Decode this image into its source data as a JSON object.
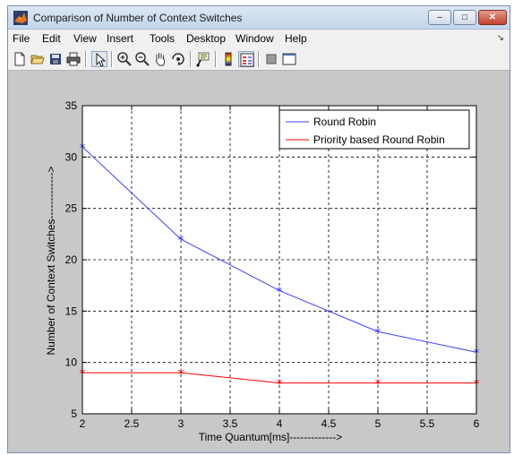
{
  "window": {
    "title": "Comparison of Number of Context Switches",
    "controls": {
      "minimize": "–",
      "maximize": "□",
      "close": "✕"
    }
  },
  "menubar": {
    "items": [
      "File",
      "Edit",
      "View",
      "Insert",
      "Tools",
      "Desktop",
      "Window",
      "Help"
    ],
    "dock_glyph": "↘"
  },
  "toolbar": {
    "icons": [
      "new-figure-icon",
      "open-file-icon",
      "save-icon",
      "print-icon",
      "edit-plot-arrow-icon",
      "zoom-in-icon",
      "zoom-out-icon",
      "pan-hand-icon",
      "rotate-3d-icon",
      "data-cursor-icon",
      "insert-colorbar-icon",
      "insert-legend-icon",
      "hide-plot-tools-icon",
      "show-plot-tools-icon"
    ]
  },
  "colors": {
    "figure_bg": "#c8c8c8",
    "axes_bg": "#ffffff",
    "series_round_robin": "#4040ff",
    "series_priority": "#ff0000"
  },
  "chart_data": {
    "type": "line",
    "title": "",
    "xlabel": "Time Quantum[ms]------------->",
    "ylabel": "Number of Context Switches------------->",
    "xlim": [
      2,
      6
    ],
    "ylim": [
      5,
      35
    ],
    "xticks": [
      2,
      2.5,
      3,
      3.5,
      4,
      4.5,
      5,
      5.5,
      6
    ],
    "xtick_labels": [
      "2",
      "2.5",
      "3",
      "3.5",
      "4",
      "4.5",
      "5",
      "5.5",
      "6"
    ],
    "yticks": [
      5,
      10,
      15,
      20,
      25,
      30,
      35
    ],
    "ytick_labels": [
      "5",
      "10",
      "15",
      "20",
      "25",
      "30",
      "35"
    ],
    "grid": true,
    "legend_position": "top-right",
    "marker": "*",
    "x": [
      2,
      3,
      4,
      5,
      6
    ],
    "series": [
      {
        "name": "Round Robin",
        "color": "#4040ff",
        "values": [
          31,
          22,
          17,
          13,
          11
        ]
      },
      {
        "name": "Priority based Round Robin",
        "color": "#ff0000",
        "values": [
          9,
          9,
          8,
          8,
          8
        ]
      }
    ]
  }
}
